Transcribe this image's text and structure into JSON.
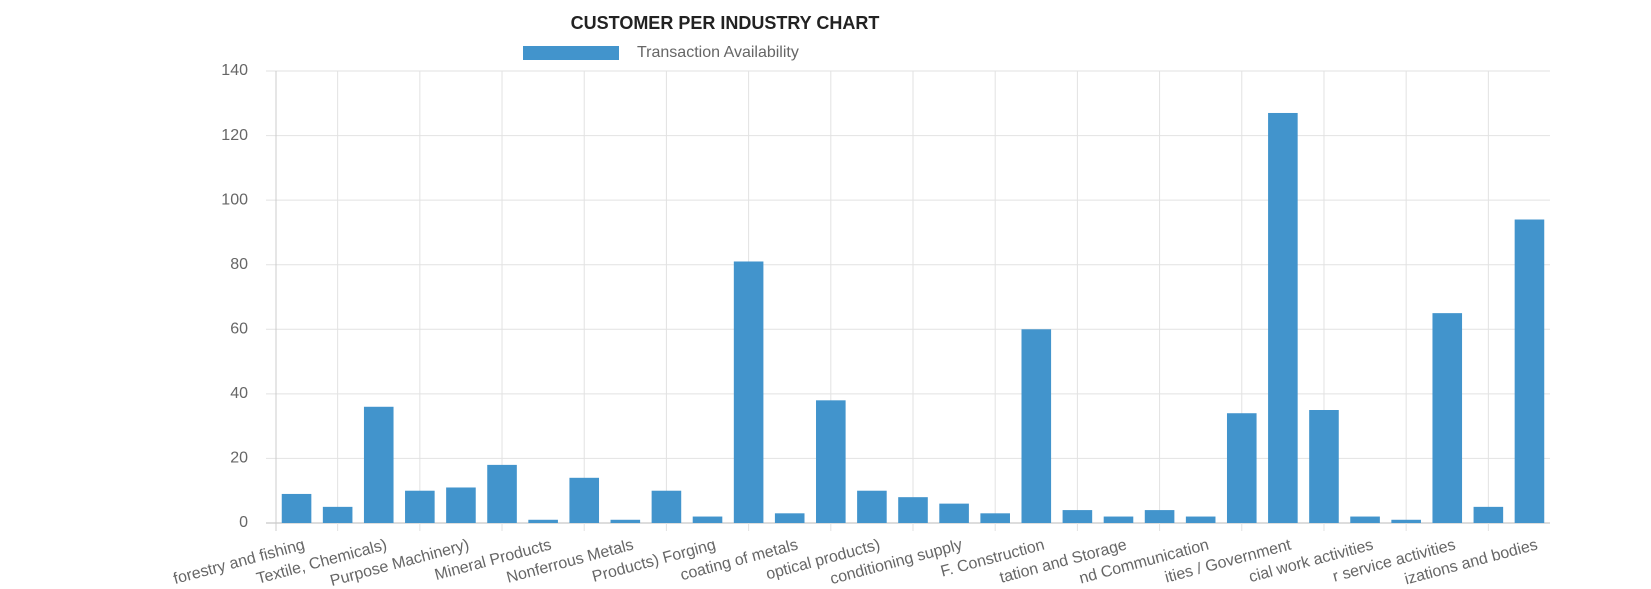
{
  "chart_data": {
    "type": "bar",
    "title": "CUSTOMER PER INDUSTRY CHART",
    "categories": [
      "forestry and fishing",
      null,
      "Textile, Chemicals)",
      null,
      "Purpose Machinery)",
      null,
      "Mineral Products",
      null,
      "Nonferrous Metals",
      null,
      "Products) Forging",
      null,
      "coating of metals",
      null,
      "optical products)",
      null,
      "conditioning supply",
      null,
      "F. Construction",
      null,
      "tation and Storage",
      null,
      "nd Communication",
      null,
      "ities / Government",
      null,
      "cial work activities",
      null,
      "r service activities",
      null,
      "izations and bodies"
    ],
    "series": [
      {
        "name": "Transaction Availability",
        "color": "#4294cc",
        "values": [
          9,
          5,
          36,
          10,
          11,
          18,
          1,
          14,
          1,
          10,
          2,
          81,
          3,
          38,
          10,
          8,
          6,
          3,
          60,
          4,
          2,
          4,
          2,
          34,
          127,
          35,
          2,
          1,
          65,
          5,
          94
        ]
      }
    ],
    "ylim": [
      0,
      140
    ],
    "yticks": [
      0,
      20,
      40,
      60,
      80,
      100,
      120,
      140
    ],
    "grid": true,
    "legend": "top"
  }
}
